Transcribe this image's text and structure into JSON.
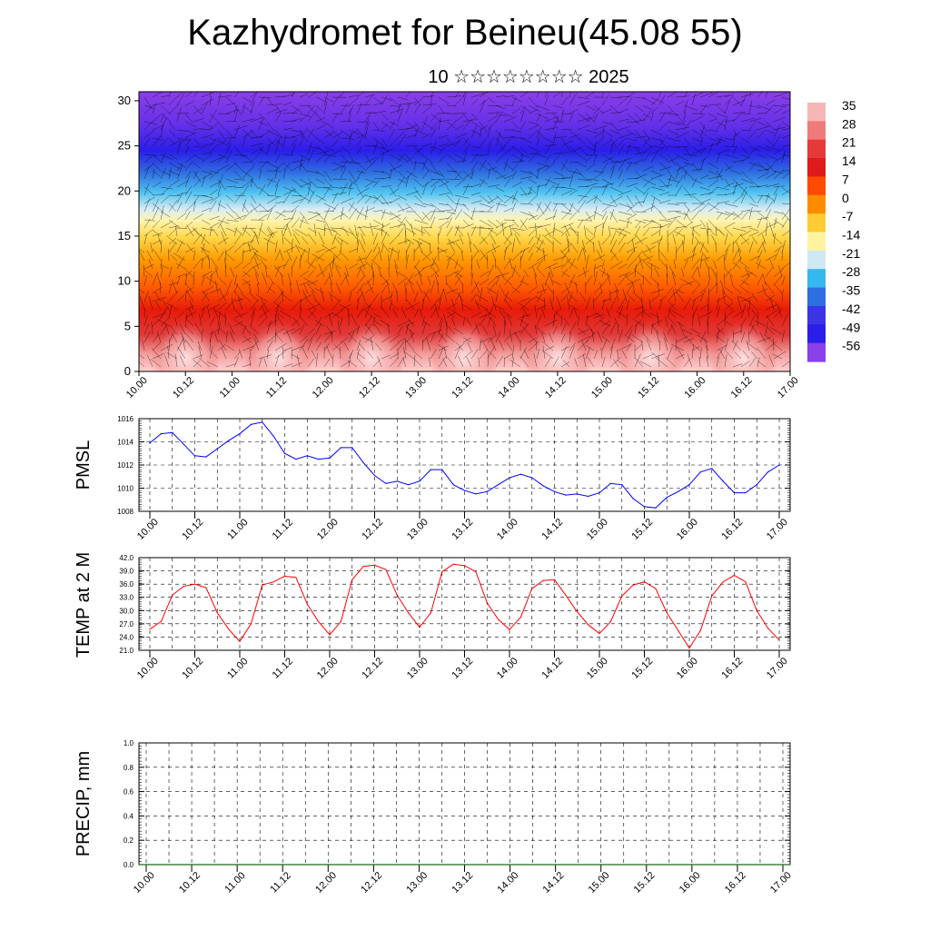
{
  "header": {
    "title": "Kazhydromet for Beineu(45.08 55)",
    "subtitle": "10 ☆☆☆☆☆☆☆☆ 2025"
  },
  "time_ticks": [
    "10.00",
    "10.12",
    "11.00",
    "11.12",
    "12.00",
    "12.12",
    "13.00",
    "13.12",
    "14.00",
    "14.12",
    "15.00",
    "15.12",
    "16.00",
    "16.12",
    "17.00"
  ],
  "chart_data": [
    {
      "type": "heatmap",
      "title": "",
      "x_categories": [
        "10.00",
        "10.12",
        "11.00",
        "11.12",
        "12.00",
        "12.12",
        "13.00",
        "13.12",
        "14.00",
        "14.12",
        "15.00",
        "15.12",
        "16.00",
        "16.12",
        "17.00"
      ],
      "ylim": [
        0,
        31
      ],
      "yticks": [
        0,
        5,
        10,
        15,
        20,
        25,
        30
      ],
      "colorbar": {
        "labels": [
          "35",
          "28",
          "21",
          "14",
          "7",
          "0",
          "-7",
          "-14",
          "-21",
          "-28",
          "-35",
          "-42",
          "-49",
          "-56"
        ],
        "colors": [
          "#f7b6b6",
          "#f07a7a",
          "#e63a3a",
          "#de1a1a",
          "#ff4a00",
          "#ff8c00",
          "#ffcc33",
          "#fff3a0",
          "#cfe8f2",
          "#35b8f0",
          "#2d6ee0",
          "#3a34e6",
          "#2a1ee8",
          "#8a3fe8"
        ]
      },
      "vertical_profile_temp": [
        [
          0,
          38
        ],
        [
          3,
          33
        ],
        [
          6,
          27
        ],
        [
          10,
          20
        ],
        [
          13,
          12
        ],
        [
          15,
          4
        ],
        [
          17,
          -4
        ],
        [
          19,
          -15
        ],
        [
          21,
          -27
        ],
        [
          23,
          -38
        ],
        [
          25,
          -48
        ],
        [
          27,
          -52
        ],
        [
          31,
          -58
        ]
      ]
    },
    {
      "type": "line",
      "ylabel": "PMSL",
      "ylim": [
        1008,
        1016
      ],
      "yticks": [
        "1016",
        "1014",
        "1012",
        "1010",
        "1008"
      ],
      "color": "#0000ff",
      "series": [
        {
          "values": [
            1013.9,
            1014.7,
            1014.8,
            1013.8,
            1012.8,
            1012.7,
            1013.4,
            1014.1,
            1014.7,
            1015.5,
            1015.7,
            1014.5,
            1013.0,
            1012.5,
            1012.8,
            1012.5,
            1012.6,
            1013.5,
            1013.5,
            1012.2,
            1011.1,
            1010.4,
            1010.6,
            1010.3,
            1010.6,
            1011.6,
            1011.6,
            1010.3,
            1009.8,
            1009.5,
            1009.7,
            1010.3,
            1010.9,
            1011.2,
            1010.9,
            1010.2,
            1009.7,
            1009.4,
            1009.5,
            1009.3,
            1009.6,
            1010.4,
            1010.3,
            1009.1,
            1008.4,
            1008.3,
            1009.2,
            1009.7,
            1010.3,
            1011.4,
            1011.7,
            1010.6,
            1009.6,
            1009.6,
            1010.3,
            1011.4,
            1012.0
          ]
        }
      ]
    },
    {
      "type": "line",
      "ylabel": "TEMP at 2 M",
      "ylim": [
        21,
        42
      ],
      "yticks": [
        "42.0",
        "39.0",
        "36.0",
        "33.0",
        "30.0",
        "27.0",
        "24.0",
        "21.0"
      ],
      "color": "#ff0000",
      "series": [
        {
          "values": [
            25.8,
            27.5,
            33.5,
            35.5,
            36.0,
            35.2,
            29.5,
            25.8,
            23.0,
            27.0,
            35.8,
            36.5,
            37.8,
            37.5,
            31.5,
            27.5,
            24.5,
            27.5,
            37.0,
            40.0,
            40.3,
            39.3,
            33.5,
            29.5,
            26.2,
            29.5,
            38.8,
            40.5,
            40.2,
            38.8,
            31.8,
            28.0,
            25.7,
            28.5,
            35.0,
            36.8,
            37.0,
            33.5,
            29.8,
            26.8,
            24.8,
            27.5,
            33.3,
            35.8,
            36.5,
            35.0,
            29.5,
            25.5,
            21.5,
            25.5,
            33.3,
            36.5,
            38.0,
            36.5,
            30.0,
            26.0,
            23.3
          ]
        }
      ]
    },
    {
      "type": "bar",
      "ylabel": "PRECIP, mm",
      "ylim": [
        0,
        1
      ],
      "yticks": [
        "1.0",
        "0.8",
        "0.6",
        "0.4",
        "0.2",
        "0.0"
      ],
      "values": []
    }
  ]
}
